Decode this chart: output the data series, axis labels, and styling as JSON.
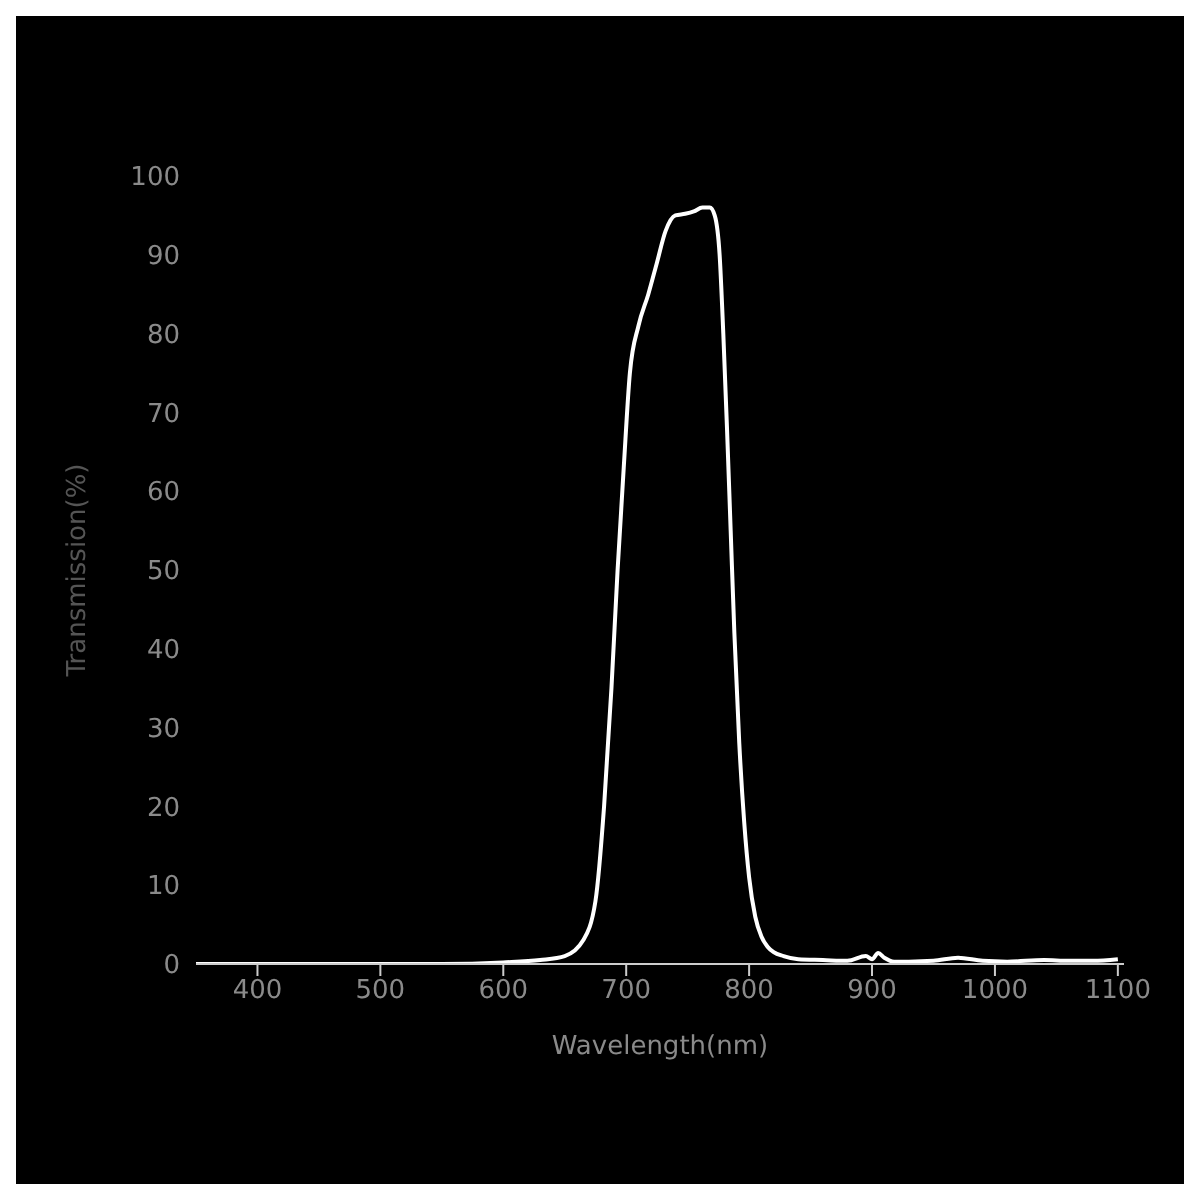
{
  "chart_data": {
    "type": "line",
    "xlabel": "Wavelength(nm)",
    "ylabel": "Transmission(%)",
    "x": [
      350,
      450,
      550,
      600,
      630,
      650,
      665,
      675,
      682,
      688,
      693,
      698,
      703,
      710,
      718,
      725,
      732,
      740,
      748,
      755,
      762,
      768,
      772,
      776,
      779,
      782,
      785,
      788,
      792,
      796,
      800,
      805,
      810,
      815,
      820,
      828,
      840,
      860,
      880,
      895,
      900,
      905,
      910,
      918,
      930,
      950,
      970,
      990,
      1010,
      1040,
      1060,
      1080,
      1100
    ],
    "series": [
      {
        "color": "#ffffff",
        "values": [
          0,
          0,
          0,
          0.2,
          0.5,
          1,
          3,
          8,
          20,
          35,
          50,
          63,
          75,
          81,
          85,
          89,
          93,
          95,
          95.2,
          95.5,
          96,
          96,
          95,
          90,
          80,
          68,
          55,
          42,
          28,
          18,
          11,
          6,
          3.5,
          2.2,
          1.5,
          1,
          0.6,
          0.5,
          0.4,
          1,
          0.6,
          1.4,
          0.8,
          0.3,
          0.3,
          0.4,
          0.8,
          0.4,
          0.3,
          0.5,
          0.4,
          0.4,
          0.6
        ]
      }
    ],
    "xlim": [
      350,
      1105
    ],
    "xticks": [
      400,
      500,
      600,
      700,
      800,
      900,
      1000,
      1100
    ],
    "ylim": [
      0,
      100
    ],
    "yticks": [
      0,
      10,
      20,
      30,
      40,
      50,
      60,
      70,
      80,
      90,
      100
    ],
    "grid": false,
    "marker": "none",
    "line_style": "solid"
  }
}
